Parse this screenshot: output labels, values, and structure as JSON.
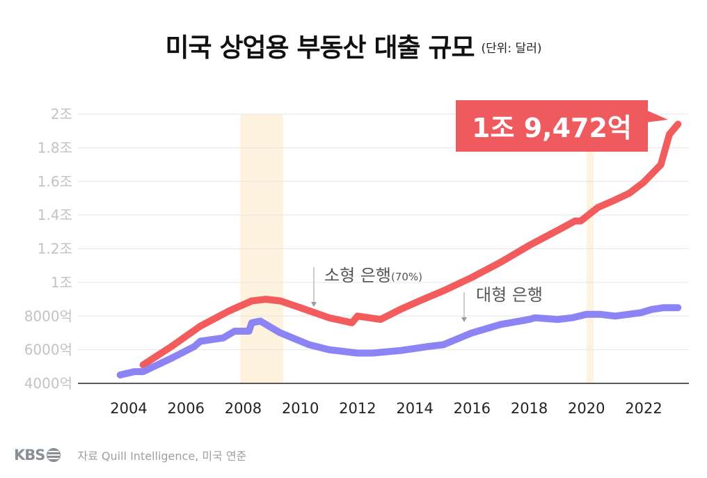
{
  "title": "미국 상업용 부동산 대출 규모",
  "unit": "(단위: 달러)",
  "footer": {
    "logo": "KBS",
    "source": "자료 Quill Intelligence, 미국 연준"
  },
  "callout": "1조 9,472억",
  "colors": {
    "small_banks": "#f25c5c",
    "large_banks": "#8c84f5",
    "callout_bg": "#ef5a5f",
    "recession_band": "#fdf3de",
    "gridline": "#e6e6e6",
    "y_tick": "#c2c2c2"
  },
  "chart_data": {
    "type": "line",
    "title": "미국 상업용 부동산 대출 규모",
    "xlabel": "",
    "ylabel": "",
    "x_ticks": [
      "2004",
      "2006",
      "2008",
      "2010",
      "2012",
      "2014",
      "2016",
      "2018",
      "2020",
      "2022"
    ],
    "y_ticks": [
      "4000억",
      "6000억",
      "8000억",
      "1조",
      "1.2조",
      "1.4조",
      "1.6조",
      "1.8조",
      "2조"
    ],
    "y_tick_values": [
      4000,
      6000,
      8000,
      10000,
      12000,
      14000,
      16000,
      18000,
      20000
    ],
    "ylim": [
      4000,
      20000
    ],
    "xlim": [
      2004,
      2023
    ],
    "grid": true,
    "shaded_periods": [
      [
        2007.9,
        2009.4
      ],
      [
        2020.0,
        2020.25
      ]
    ],
    "series": [
      {
        "name": "소형 은행",
        "annotation": "(70%)",
        "x": [
          2004.5,
          2005.5,
          2006.5,
          2007.5,
          2008.3,
          2008.8,
          2009.3,
          2010.0,
          2011.0,
          2011.8,
          2012.0,
          2012.8,
          2013.5,
          2014.3,
          2015.0,
          2016.0,
          2017.0,
          2018.0,
          2019.0,
          2019.6,
          2019.8,
          2020.4,
          2021.0,
          2021.5,
          2022.0,
          2022.6,
          2022.9,
          2023.2
        ],
        "y": [
          5100,
          6200,
          7400,
          8300,
          8900,
          9000,
          8900,
          8500,
          7900,
          7600,
          8000,
          7800,
          8400,
          9000,
          9500,
          10300,
          11200,
          12200,
          13100,
          13650,
          13650,
          14450,
          14900,
          15300,
          15950,
          17000,
          18800,
          19400
        ]
      },
      {
        "name": "대형 은행",
        "x": [
          2003.7,
          2004.2,
          2004.5,
          2005.5,
          2006.3,
          2006.5,
          2007.3,
          2007.7,
          2008.2,
          2008.3,
          2008.6,
          2009.3,
          2010.3,
          2011.0,
          2012.0,
          2012.5,
          2013.5,
          2014.5,
          2015.0,
          2016.0,
          2017.0,
          2018.0,
          2018.2,
          2019.0,
          2019.5,
          2020.0,
          2020.5,
          2021.0,
          2021.9,
          2022.3,
          2022.5,
          2022.7,
          2023.2
        ],
        "y": [
          4500,
          4700,
          4700,
          5500,
          6200,
          6500,
          6700,
          7100,
          7100,
          7600,
          7700,
          7000,
          6300,
          6000,
          5800,
          5800,
          5950,
          6200,
          6300,
          7000,
          7500,
          7800,
          7900,
          7800,
          7900,
          8100,
          8100,
          8000,
          8200,
          8400,
          8450,
          8500,
          8500
        ]
      }
    ],
    "annotations": [
      {
        "text": "소형 은행(70%)",
        "target_series": "소형 은행"
      },
      {
        "text": "대형 은행",
        "target_series": "대형 은행"
      },
      {
        "text": "1조 9,472억",
        "target_series": "소형 은행"
      }
    ]
  }
}
